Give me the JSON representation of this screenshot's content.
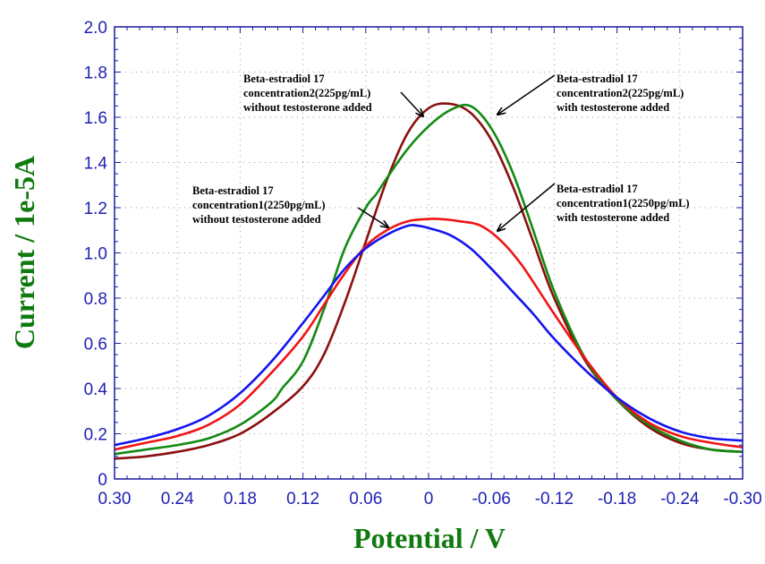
{
  "chart_data": {
    "type": "line",
    "xlabel": "Potential / V",
    "ylabel": "Current / 1e-5A",
    "xlim": [
      0.3,
      -0.3
    ],
    "ylim": [
      0,
      2.0
    ],
    "x_reversed": true,
    "grid": true,
    "x_ticks": [
      0.3,
      0.24,
      0.18,
      0.12,
      0.06,
      0,
      -0.06,
      -0.12,
      -0.18,
      -0.24,
      -0.3
    ],
    "x_tick_labels": [
      "0.30",
      "0.24",
      "0.18",
      "0.12",
      "0.06",
      "0",
      "-0.06",
      "-0.12",
      "-0.18",
      "-0.24",
      "-0.30"
    ],
    "y_ticks": [
      0,
      0.2,
      0.4,
      0.6,
      0.8,
      1.0,
      1.2,
      1.4,
      1.6,
      1.8,
      2.0
    ],
    "y_tick_labels": [
      "0",
      "0.2",
      "0.4",
      "0.6",
      "0.8",
      "1.0",
      "1.2",
      "1.4",
      "1.6",
      "1.8",
      "2.0"
    ],
    "series": [
      {
        "color": "#8b1010",
        "x": [
          0.3,
          0.27,
          0.24,
          0.21,
          0.18,
          0.15,
          0.12,
          0.1,
          0.08,
          0.06,
          0.04,
          0.02,
          0.0,
          -0.02,
          -0.04,
          -0.06,
          -0.08,
          -0.1,
          -0.12,
          -0.15,
          -0.18,
          -0.21,
          -0.24,
          -0.27,
          -0.3
        ],
        "y": [
          0.09,
          0.1,
          0.12,
          0.15,
          0.2,
          0.29,
          0.41,
          0.55,
          0.78,
          1.05,
          1.32,
          1.53,
          1.64,
          1.66,
          1.62,
          1.5,
          1.3,
          1.05,
          0.8,
          0.52,
          0.35,
          0.23,
          0.16,
          0.13,
          0.12
        ]
      },
      {
        "color": "#128a12",
        "x": [
          0.3,
          0.27,
          0.24,
          0.21,
          0.18,
          0.15,
          0.14,
          0.12,
          0.1,
          0.08,
          0.06,
          0.05,
          0.04,
          0.02,
          0.0,
          -0.02,
          -0.04,
          -0.06,
          -0.08,
          -0.1,
          -0.12,
          -0.15,
          -0.18,
          -0.21,
          -0.24,
          -0.27,
          -0.3
        ],
        "y": [
          0.11,
          0.13,
          0.15,
          0.18,
          0.24,
          0.34,
          0.4,
          0.52,
          0.75,
          1.02,
          1.2,
          1.26,
          1.33,
          1.46,
          1.56,
          1.63,
          1.65,
          1.55,
          1.36,
          1.1,
          0.83,
          0.53,
          0.35,
          0.24,
          0.17,
          0.13,
          0.12
        ]
      },
      {
        "color": "#f01414",
        "x": [
          0.3,
          0.27,
          0.24,
          0.21,
          0.18,
          0.15,
          0.12,
          0.1,
          0.08,
          0.06,
          0.04,
          0.02,
          0.0,
          -0.01,
          -0.03,
          -0.05,
          -0.07,
          -0.09,
          -0.12,
          -0.15,
          -0.18,
          -0.21,
          -0.24,
          -0.27,
          -0.3
        ],
        "y": [
          0.13,
          0.16,
          0.19,
          0.24,
          0.33,
          0.47,
          0.63,
          0.77,
          0.91,
          1.03,
          1.1,
          1.14,
          1.15,
          1.15,
          1.14,
          1.12,
          1.05,
          0.94,
          0.73,
          0.53,
          0.36,
          0.25,
          0.19,
          0.16,
          0.14
        ]
      },
      {
        "color": "#1414f0",
        "x": [
          0.3,
          0.27,
          0.24,
          0.21,
          0.18,
          0.15,
          0.12,
          0.1,
          0.08,
          0.06,
          0.04,
          0.02,
          0.01,
          0.0,
          -0.02,
          -0.04,
          -0.06,
          -0.08,
          -0.1,
          -0.12,
          -0.15,
          -0.18,
          -0.21,
          -0.24,
          -0.27,
          -0.3
        ],
        "y": [
          0.15,
          0.18,
          0.22,
          0.28,
          0.38,
          0.52,
          0.69,
          0.81,
          0.93,
          1.02,
          1.08,
          1.12,
          1.12,
          1.11,
          1.08,
          1.02,
          0.93,
          0.83,
          0.73,
          0.62,
          0.48,
          0.36,
          0.27,
          0.21,
          0.18,
          0.17
        ]
      }
    ],
    "annotations": [
      {
        "lines": [
          "Beta-estradiol 17",
          "concentration2(225pg/mL)",
          "without testosterone added"
        ]
      },
      {
        "lines": [
          "Beta-estradiol 17",
          "concentration2(225pg/mL)",
          "with testosterone added"
        ]
      },
      {
        "lines": [
          "Beta-estradiol 17",
          "concentration1(2250pg/mL)",
          "without testosterone added"
        ]
      },
      {
        "lines": [
          "Beta-estradiol 17",
          "concentration1(2250pg/mL)",
          "with testosterone added"
        ]
      }
    ]
  }
}
